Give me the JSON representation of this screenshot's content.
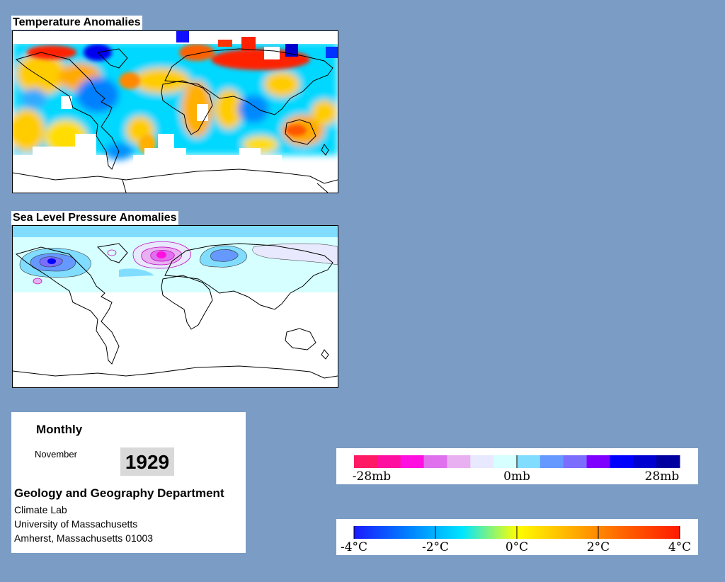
{
  "maps": {
    "temperature": {
      "title": "Temperature Anomalies"
    },
    "pressure": {
      "title": "Sea Level Pressure Anomalies"
    }
  },
  "info": {
    "frequency": "Monthly",
    "month": "November",
    "year": "1929",
    "department": "Geology and Geography Department",
    "lines": [
      "Climate Lab",
      "University of Massachusetts",
      "Amherst, Massachusetts 01003"
    ]
  },
  "legends": {
    "pressure": {
      "colors": [
        "#ff1a66",
        "#ff0fa0",
        "#ff10e0",
        "#e070ee",
        "#e8b0f0",
        "#e8e8ff",
        "#d6ffff",
        "#80ddff",
        "#6699ff",
        "#7b6eff",
        "#8000ff",
        "#0000ff",
        "#0000d0",
        "#0000a0"
      ],
      "labels": [
        "-28mb",
        "0mb",
        "28mb"
      ]
    },
    "temperature": {
      "stops": [
        "#1a1aff",
        "#0080ff",
        "#00e6ff",
        "#ffff00",
        "#ffb000",
        "#ff6000",
        "#ff1a00"
      ],
      "labels": [
        "-4°C",
        "-2°C",
        "0°C",
        "2°C",
        "4°C"
      ]
    }
  }
}
